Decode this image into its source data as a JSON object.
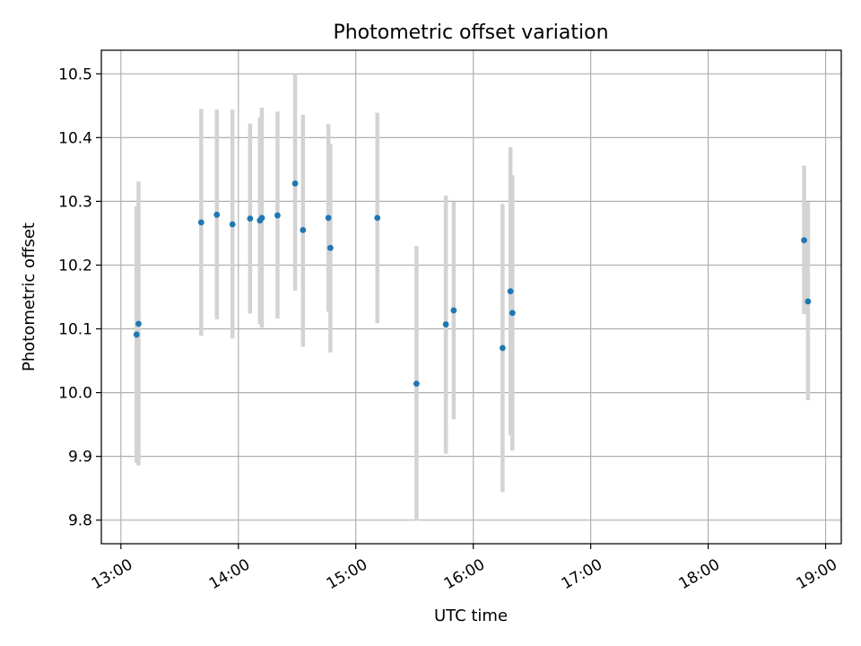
{
  "chart_data": {
    "type": "scatter",
    "title": "Photometric offset variation",
    "xlabel": "UTC time",
    "ylabel": "Photometric offset",
    "x_axis_type": "time",
    "xlim": [
      "12:50",
      "19:08"
    ],
    "ylim": [
      9.763,
      10.537
    ],
    "x_ticks": [
      "13:00",
      "14:00",
      "15:00",
      "16:00",
      "17:00",
      "18:00",
      "19:00"
    ],
    "y_ticks": [
      9.8,
      9.9,
      10.0,
      10.1,
      10.2,
      10.3,
      10.4,
      10.5
    ],
    "y_tick_labels": [
      "9.8",
      "9.9",
      "10.0",
      "10.1",
      "10.2",
      "10.3",
      "10.4",
      "10.5"
    ],
    "x_tick_rotation": "30 degrees",
    "grid": true,
    "legend": "none",
    "colors": {
      "marker": "#1f77b4",
      "errorbar": "#d3d3d3",
      "grid": "#b0b0b0",
      "axes": "#000000"
    },
    "points": [
      {
        "x": "13:08",
        "y": 10.091,
        "y_low": 9.89,
        "y_high": 10.292
      },
      {
        "x": "13:09",
        "y": 10.108,
        "y_low": 9.886,
        "y_high": 10.331
      },
      {
        "x": "13:41",
        "y": 10.267,
        "y_low": 10.089,
        "y_high": 10.445
      },
      {
        "x": "13:49",
        "y": 10.279,
        "y_low": 10.115,
        "y_high": 10.444
      },
      {
        "x": "13:57",
        "y": 10.264,
        "y_low": 10.085,
        "y_high": 10.444
      },
      {
        "x": "14:06",
        "y": 10.273,
        "y_low": 10.124,
        "y_high": 10.422
      },
      {
        "x": "14:11",
        "y": 10.27,
        "y_low": 10.107,
        "y_high": 10.432
      },
      {
        "x": "14:12",
        "y": 10.274,
        "y_low": 10.102,
        "y_high": 10.447
      },
      {
        "x": "14:20",
        "y": 10.278,
        "y_low": 10.116,
        "y_high": 10.441
      },
      {
        "x": "14:29",
        "y": 10.328,
        "y_low": 10.16,
        "y_high": 10.5
      },
      {
        "x": "14:33",
        "y": 10.255,
        "y_low": 10.072,
        "y_high": 10.436
      },
      {
        "x": "14:46",
        "y": 10.274,
        "y_low": 10.127,
        "y_high": 10.421
      },
      {
        "x": "14:47",
        "y": 10.227,
        "y_low": 10.063,
        "y_high": 10.39
      },
      {
        "x": "15:11",
        "y": 10.274,
        "y_low": 10.109,
        "y_high": 10.439
      },
      {
        "x": "15:31",
        "y": 10.014,
        "y_low": 9.799,
        "y_high": 10.23
      },
      {
        "x": "15:46",
        "y": 10.107,
        "y_low": 9.904,
        "y_high": 10.309
      },
      {
        "x": "15:50",
        "y": 10.129,
        "y_low": 9.958,
        "y_high": 10.299
      },
      {
        "x": "16:15",
        "y": 10.07,
        "y_low": 9.844,
        "y_high": 10.296
      },
      {
        "x": "16:19",
        "y": 10.159,
        "y_low": 9.933,
        "y_high": 10.385
      },
      {
        "x": "16:20",
        "y": 10.125,
        "y_low": 9.909,
        "y_high": 10.341
      },
      {
        "x": "18:49",
        "y": 10.239,
        "y_low": 10.123,
        "y_high": 10.356
      },
      {
        "x": "18:51",
        "y": 10.143,
        "y_low": 9.988,
        "y_high": 10.299
      }
    ]
  }
}
